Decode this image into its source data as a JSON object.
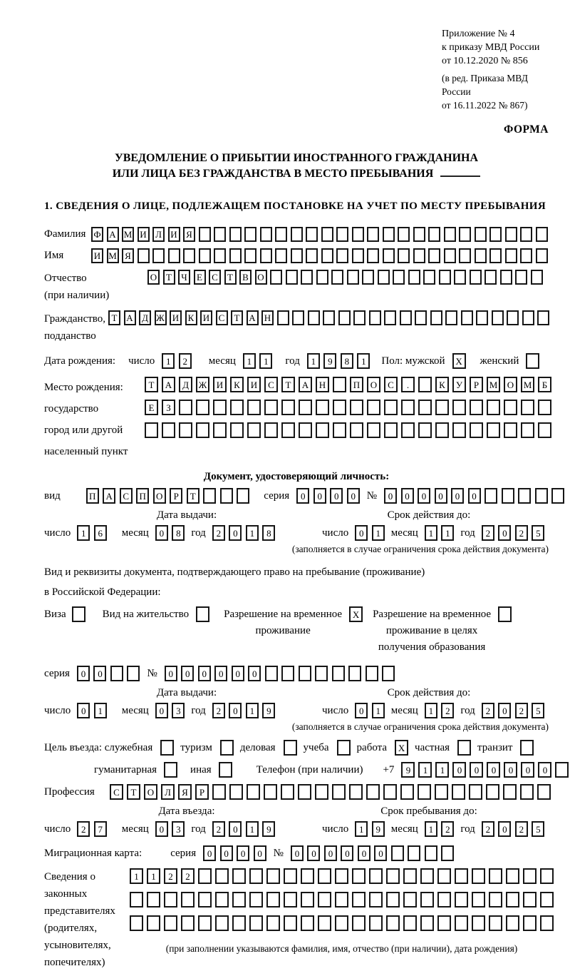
{
  "page": {
    "annex": [
      "Приложение № 4",
      "к приказу МВД России",
      "от 10.12.2020 № 856"
    ],
    "annex_note": [
      "(в ред. Приказа МВД России",
      "от 16.11.2022 № 867)"
    ],
    "form_word": "ФОРМА",
    "title1": "УВЕДОМЛЕНИЕ О ПРИБЫТИИ ИНОСТРАННОГО ГРАЖДАНИНА",
    "title2": "ИЛИ ЛИЦА БЕЗ ГРАЖДАНСТВА В МЕСТО ПРЕБЫВАНИЯ",
    "section1": "1. СВЕДЕНИЯ О ЛИЦЕ, ПОДЛЕЖАЩЕМ ПОСТАНОВКЕ НА УЧЕТ ПО МЕСТУ ПРЕБЫВАНИЯ"
  },
  "labels": {
    "surname": "Фамилия",
    "firstname": "Имя",
    "patronymic": [
      "Отчество",
      "(при наличии)"
    ],
    "citizenship": [
      "Гражданство,",
      "подданство"
    ],
    "birth": "Дата рождения:",
    "day": "число",
    "month": "месяц",
    "year": "год",
    "sex": "Пол: мужской",
    "female": "женский",
    "birthplace": [
      "Место рождения:",
      "государство",
      "город или другой",
      "населенный пункт"
    ],
    "doc_header": "Документ, удостоверяющий личность:",
    "kind": "вид",
    "series": "серия",
    "number": "№",
    "issue": "Дата выдачи:",
    "valid": "Срок действия до:",
    "restrict_note": "(заполняется в случае ограничения срока действия документа)",
    "right_doc": [
      "Вид и реквизиты документа, подтверждающего право на пребывание (проживание)",
      "в Российской Федерации:"
    ],
    "visa": "Виза",
    "vnz": "Вид на жительство",
    "rvp": [
      "Разрешение на временное",
      "проживание"
    ],
    "rvp_edu": [
      "Разрешение на временное",
      "проживание в целях",
      "получения образования"
    ],
    "purpose": "Цель въезда: служебная",
    "tourism": "туризм",
    "business": "деловая",
    "study": "учеба",
    "work": "работа",
    "private": "частная",
    "transit": "транзит",
    "humanitarian": "гуманитарная",
    "other": "иная",
    "phone": "Телефон (при наличии)",
    "plus7": "+7",
    "profession": "Профессия",
    "entry": "Дата въезда:",
    "stay": "Срок пребывания до:",
    "migr": "Миграционная карта:",
    "guardians": [
      "Сведения о",
      "законных",
      "представителях",
      "(родителях,",
      "усыновителях,",
      "попечителях)"
    ],
    "guardians_note": "(при заполнении указываются фамилия, имя, отчество (при наличии), дата рождения)"
  },
  "fields": {
    "surname": {
      "v": "ФАМИЛИЯ",
      "n": 30
    },
    "firstname": {
      "v": "ИМЯ",
      "n": 30
    },
    "patronymic": {
      "v": "ОТЧЕСТВО",
      "n": 26
    },
    "citizenship": {
      "v": "ТАДЖИКИСТАН",
      "n": 29
    },
    "birth_day": {
      "v": "12",
      "n": 2
    },
    "birth_month": {
      "v": "11",
      "n": 2
    },
    "birth_year": {
      "v": "1981",
      "n": 4
    },
    "sex_male": {
      "v": "X",
      "n": 1
    },
    "sex_female": {
      "v": "",
      "n": 1
    },
    "birthplace1": {
      "v": "ТАДЖИКИСТАН ПОС. КУРМОМБ",
      "n": 24
    },
    "birthplace2": {
      "v": "ЕЗ",
      "n": 24
    },
    "birthplace3": {
      "v": "",
      "n": 24
    },
    "doc_kind": {
      "v": "ПАСПОРТ",
      "n": 10
    },
    "doc_series": {
      "v": "0000",
      "n": 4
    },
    "doc_number": {
      "v": "000000",
      "n": 11
    },
    "doc_issue_day": {
      "v": "16",
      "n": 2
    },
    "doc_issue_month": {
      "v": "08",
      "n": 2
    },
    "doc_issue_year": {
      "v": "2018",
      "n": 4
    },
    "doc_valid_day": {
      "v": "01",
      "n": 2
    },
    "doc_valid_month": {
      "v": "11",
      "n": 2
    },
    "doc_valid_year": {
      "v": "2025",
      "n": 4
    },
    "cb_visa": {
      "v": "",
      "n": 1
    },
    "cb_vnz": {
      "v": "",
      "n": 1
    },
    "cb_rvp": {
      "v": "X",
      "n": 1
    },
    "cb_rvp_edu": {
      "v": "",
      "n": 1
    },
    "permit_series": {
      "v": "00",
      "n": 4
    },
    "permit_number": {
      "v": "000000",
      "n": 14
    },
    "permit_issue_day": {
      "v": "01",
      "n": 2
    },
    "permit_issue_month": {
      "v": "03",
      "n": 2
    },
    "permit_issue_year": {
      "v": "2019",
      "n": 4
    },
    "permit_valid_day": {
      "v": "01",
      "n": 2
    },
    "permit_valid_month": {
      "v": "12",
      "n": 2
    },
    "permit_valid_year": {
      "v": "2025",
      "n": 4
    },
    "cb_official": {
      "v": "",
      "n": 1
    },
    "cb_tourism": {
      "v": "",
      "n": 1
    },
    "cb_business": {
      "v": "",
      "n": 1
    },
    "cb_study": {
      "v": "",
      "n": 1
    },
    "cb_work": {
      "v": "X",
      "n": 1
    },
    "cb_private": {
      "v": "",
      "n": 1
    },
    "cb_transit": {
      "v": "",
      "n": 1
    },
    "cb_humanitarian": {
      "v": "",
      "n": 1
    },
    "cb_other": {
      "v": "",
      "n": 1
    },
    "phone": {
      "v": "911000000",
      "n": 10
    },
    "profession": {
      "v": "СТОЛЯР",
      "n": 26
    },
    "entry_day": {
      "v": "27",
      "n": 2
    },
    "entry_month": {
      "v": "03",
      "n": 2
    },
    "entry_year": {
      "v": "2019",
      "n": 4
    },
    "stay_day": {
      "v": "19",
      "n": 2
    },
    "stay_month": {
      "v": "12",
      "n": 2
    },
    "stay_year": {
      "v": "2025",
      "n": 4
    },
    "migr_series": {
      "v": "0000",
      "n": 4
    },
    "migr_number": {
      "v": "000000",
      "n": 10
    },
    "guardians1": {
      "v": "1122",
      "n": 25
    },
    "guardians2": {
      "v": "",
      "n": 25
    },
    "guardians3": {
      "v": "",
      "n": 25
    }
  }
}
